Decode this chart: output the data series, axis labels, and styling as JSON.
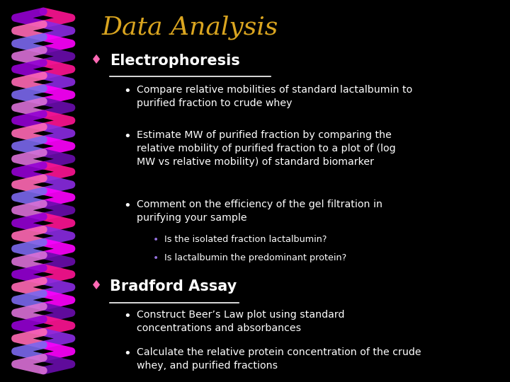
{
  "title": "Data Analysis",
  "title_color": "#DAA520",
  "background_color": "#000000",
  "section1_header": "Electrophoresis",
  "section1_bullet1": "Compare relative mobilities of standard lactalbumin to\npurified fraction to crude whey",
  "section1_bullet2": "Estimate MW of purified fraction by comparing the\nrelative mobility of purified fraction to a plot of (log\nMW vs relative mobility) of standard biomarker",
  "section1_bullet3": "Comment on the efficiency of the gel filtration in\npurifying your sample",
  "section1_sub1": "Is the isolated fraction lactalbumin?",
  "section1_sub2": "Is lactalbumin the predominant protein?",
  "section2_header": "Bradford Assay",
  "section2_bullet1": "Construct Beer’s Law plot using standard\nconcentrations and absorbances",
  "section2_bullet2": "Calculate the relative protein concentration of the crude\nwhey, and purified fractions",
  "text_color": "#FFFFFF",
  "header_color": "#FFFFFF",
  "bullet_color": "#FFFFFF",
  "diamond_color": "#FF69B4",
  "sub_bullet_color": "#9370DB",
  "underline_color": "#FFFFFF",
  "colors_pink": [
    "#FF1493",
    "#FF69B4",
    "#FF00FF",
    "#DA70D6"
  ],
  "colors_purple": [
    "#9400D3",
    "#8A2BE2",
    "#7B68EE",
    "#6A0DAD"
  ]
}
